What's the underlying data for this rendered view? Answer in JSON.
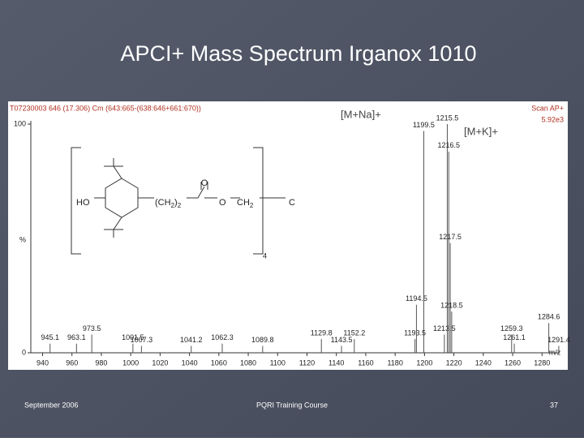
{
  "slide": {
    "title": "APCI+ Mass Spectrum Irganox 1010",
    "date": "September 2006",
    "course": "PQRI Training Course",
    "page": "37"
  },
  "chart_data": {
    "type": "spectrum",
    "header": "T07230003 646 (17.306) Cm (643:665-(638:646+661:670))",
    "scan": "Scan AP+",
    "intensity": "5.92e3",
    "y_label": "%",
    "x_label": "m/z",
    "annotations": [
      "[M+Na]+",
      "[M+K]+"
    ],
    "structure": {
      "hydroxyl": "HO",
      "chain": [
        "(CH",
        "2",
        ")",
        "2"
      ],
      "carbonyl": "O",
      "ester": "O",
      "methylene": [
        "CH",
        "2"
      ],
      "center": "C",
      "count": "4"
    },
    "x": [
      945.1,
      963.1,
      973.5,
      1001.5,
      1007.3,
      1041.2,
      1062.3,
      1089.8,
      1129.8,
      1143.5,
      1152.2,
      1193.5,
      1194.5,
      1199.5,
      1213.5,
      1215.5,
      1216.5,
      1217.5,
      1218.5,
      1259.3,
      1261.1,
      1284.6,
      1291.4
    ],
    "values": [
      4,
      4,
      8,
      4,
      3,
      3,
      4,
      3,
      6,
      3,
      6,
      6,
      21,
      97,
      8,
      100,
      88,
      48,
      18,
      8,
      4,
      13,
      3
    ],
    "color": "#555555",
    "xlim": [
      932,
      1292
    ],
    "ylim": [
      0,
      100
    ],
    "xticks": [
      940,
      960,
      980,
      1000,
      1020,
      1040,
      1060,
      1080,
      1100,
      1120,
      1140,
      1160,
      1180,
      1200,
      1220,
      1240,
      1260,
      1280
    ],
    "yticks": [
      0,
      100
    ]
  }
}
